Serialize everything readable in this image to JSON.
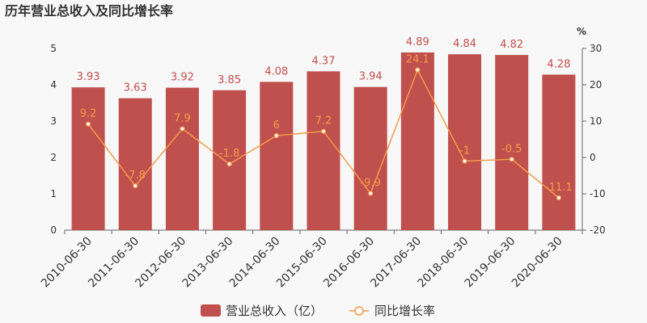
{
  "chart_data": {
    "type": "bar+line",
    "title": "历年营业总收入及同比增长率",
    "categories": [
      "2010-06-30",
      "2011-06-30",
      "2012-06-30",
      "2013-06-30",
      "2014-06-30",
      "2015-06-30",
      "2016-06-30",
      "2017-06-30",
      "2018-06-30",
      "2019-06-30",
      "2020-06-30"
    ],
    "series": [
      {
        "name": "营业总收入（亿）",
        "type": "bar",
        "axis": "left",
        "values": [
          3.93,
          3.63,
          3.92,
          3.85,
          4.08,
          4.37,
          3.94,
          4.89,
          4.84,
          4.82,
          4.28
        ],
        "labels": [
          "3.93",
          "3.63",
          "3.92",
          "3.85",
          "4.08",
          "4.37",
          "3.94",
          "4.89",
          "4.84",
          "4.82",
          "4.28"
        ],
        "color": "#c0504d"
      },
      {
        "name": "同比增长率",
        "type": "line",
        "axis": "right",
        "values": [
          9.2,
          -7.8,
          7.9,
          -1.8,
          6,
          7.2,
          -9.9,
          24.1,
          -1,
          -0.5,
          -11.1
        ],
        "labels": [
          "9.2",
          "-7.8",
          "7.9",
          "-1.8",
          "6",
          "7.2",
          "-9.9",
          "24.1",
          "-1",
          "-0.5",
          "-11.1"
        ],
        "color": "#f59a4b"
      }
    ],
    "y_left": {
      "ylim": [
        0,
        5
      ],
      "ticks": [
        "0",
        "1",
        "2",
        "3",
        "4",
        "5"
      ]
    },
    "y_right": {
      "ylim": [
        -20,
        30
      ],
      "ticks": [
        "-20",
        "-10",
        "0",
        "10",
        "20",
        "30"
      ],
      "unit": "%"
    },
    "grid": false,
    "legend": "bottom-center"
  }
}
